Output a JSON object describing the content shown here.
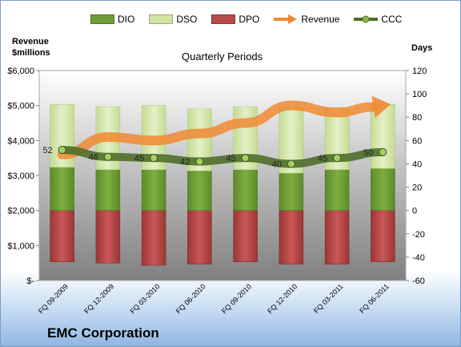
{
  "legend": {
    "dio": "DIO",
    "dso": "DSO",
    "dpo": "DPO",
    "revenue": "Revenue",
    "ccc": "CCC"
  },
  "axes": {
    "left_title_line1": "Revenue",
    "left_title_line2": "$millions",
    "right_title": "Days"
  },
  "company": "EMC Corporation",
  "chart_data": {
    "type": "bar",
    "title": "Quarterly Periods",
    "categories": [
      "FQ 09-2009",
      "FQ 12-2009",
      "FQ 03-2010",
      "FQ 06-2010",
      "FQ 09-2010",
      "FQ 12-2010",
      "FQ 03-2011",
      "FQ 06-2011"
    ],
    "left_axis": {
      "label": "Revenue $millions",
      "ylim": [
        0,
        6000
      ],
      "ticks": [
        0,
        1000,
        2000,
        3000,
        4000,
        5000,
        6000
      ],
      "tick_labels": [
        "$-",
        "$1,000",
        "$2,000",
        "$3,000",
        "$4,000",
        "$5,000",
        "$6,000"
      ]
    },
    "right_axis": {
      "label": "Days",
      "ylim": [
        -60,
        120
      ],
      "ticks": [
        -60,
        -40,
        -20,
        0,
        20,
        40,
        60,
        80,
        100,
        120
      ]
    },
    "series": [
      {
        "name": "DIO",
        "type": "stacked-bar",
        "axis": "right",
        "color": "#6f9a35",
        "values": [
          37,
          35,
          35,
          34,
          35,
          32,
          35,
          36
        ]
      },
      {
        "name": "DSO",
        "type": "stacked-bar",
        "axis": "right",
        "color": "#cfe3a3",
        "values": [
          54,
          54,
          55,
          53,
          54,
          57,
          53,
          55
        ]
      },
      {
        "name": "DPO",
        "type": "bar-negative",
        "axis": "right",
        "color": "#b94a4a",
        "values": [
          -44,
          -45,
          -47,
          -46,
          -44,
          -46,
          -46,
          -44
        ]
      },
      {
        "name": "Revenue",
        "type": "line",
        "axis": "left",
        "color": "#f08a32",
        "values": [
          3600,
          4100,
          4000,
          4200,
          4500,
          5000,
          4800,
          5000
        ]
      },
      {
        "name": "CCC",
        "type": "line",
        "axis": "right",
        "color": "#4f6f2a",
        "values": [
          52,
          46,
          45,
          42,
          45,
          40,
          45,
          50
        ],
        "data_labels": [
          "52",
          "46",
          "45",
          "42",
          "45",
          "40",
          "45",
          "50"
        ]
      }
    ],
    "grid": false,
    "legend_position": "top"
  },
  "colors": {
    "dio": "#6f9a35",
    "dso": "#cfe3a3",
    "dpo": "#b94a4a",
    "revenue": "#f08a32",
    "ccc": "#4f6f2a",
    "plot_top": "#ffffff",
    "plot_bottom": "#7f7f7f"
  }
}
